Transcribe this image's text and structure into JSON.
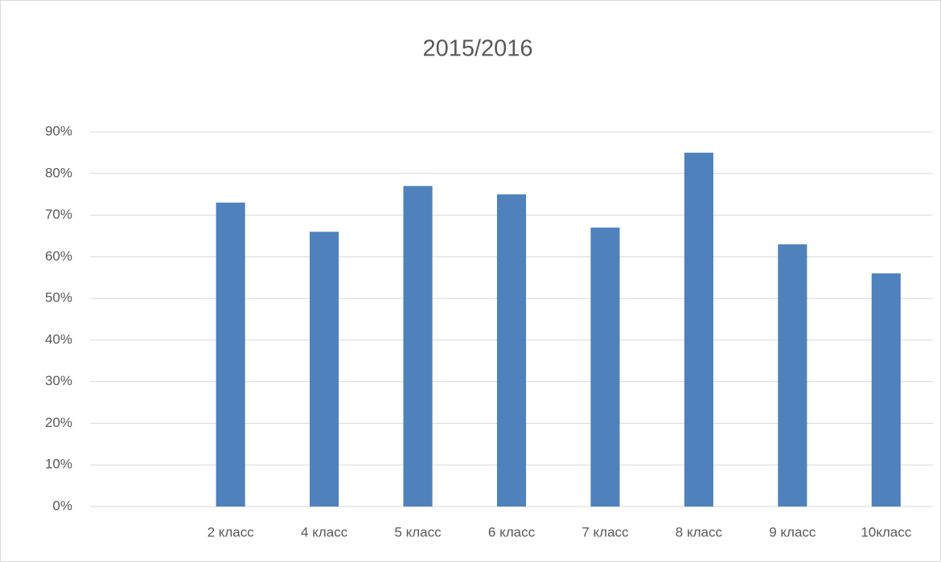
{
  "chart_data": {
    "type": "bar",
    "title": "2015/2016",
    "categories": [
      null,
      "2 класс",
      "4 класс",
      "5 класс",
      "6 класс",
      "7 класс",
      "8 класс",
      "9 класс",
      "10класс"
    ],
    "values": [
      null,
      73,
      66,
      77,
      75,
      67,
      85,
      63,
      56
    ],
    "color": "#4f81bd",
    "ylim": [
      0,
      90
    ],
    "yticks": [
      {
        "value": 0,
        "label": "0%"
      },
      {
        "value": 10,
        "label": "10%"
      },
      {
        "value": 20,
        "label": "20%"
      },
      {
        "value": 30,
        "label": "30%"
      },
      {
        "value": 40,
        "label": "40%"
      },
      {
        "value": 50,
        "label": "50%"
      },
      {
        "value": 60,
        "label": "60%"
      },
      {
        "value": 70,
        "label": "70%"
      },
      {
        "value": 80,
        "label": "80%"
      },
      {
        "value": 90,
        "label": "90%"
      }
    ],
    "grid": true
  }
}
